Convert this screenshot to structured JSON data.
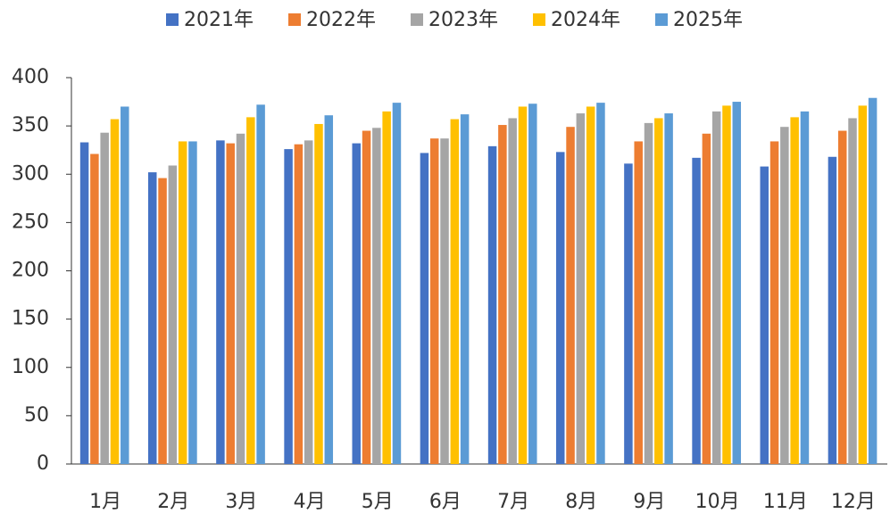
{
  "chart_data": {
    "type": "bar",
    "categories": [
      "1月",
      "2月",
      "3月",
      "4月",
      "5月",
      "6月",
      "7月",
      "8月",
      "9月",
      "10月",
      "11月",
      "12月"
    ],
    "series": [
      {
        "name": "2021年",
        "color": "#4472c4",
        "values": [
          333,
          302,
          335,
          326,
          332,
          322,
          329,
          323,
          311,
          317,
          308,
          318
        ]
      },
      {
        "name": "2022年",
        "color": "#ed7d31",
        "values": [
          321,
          296,
          332,
          331,
          345,
          337,
          351,
          349,
          334,
          342,
          334,
          345
        ]
      },
      {
        "name": "2023年",
        "color": "#a5a5a5",
        "values": [
          343,
          309,
          342,
          335,
          348,
          337,
          358,
          363,
          353,
          365,
          349,
          358
        ]
      },
      {
        "name": "2024年",
        "color": "#ffc000",
        "values": [
          357,
          334,
          359,
          352,
          365,
          357,
          370,
          370,
          358,
          371,
          359,
          371
        ]
      },
      {
        "name": "2025年",
        "color": "#5b9bd5",
        "values": [
          370,
          334,
          372,
          361,
          374,
          362,
          373,
          374,
          363,
          375,
          365,
          379
        ]
      }
    ],
    "ylim": [
      0,
      400
    ],
    "yticks": [
      0,
      50,
      100,
      150,
      200,
      250,
      300,
      350,
      400
    ],
    "grid": false
  }
}
